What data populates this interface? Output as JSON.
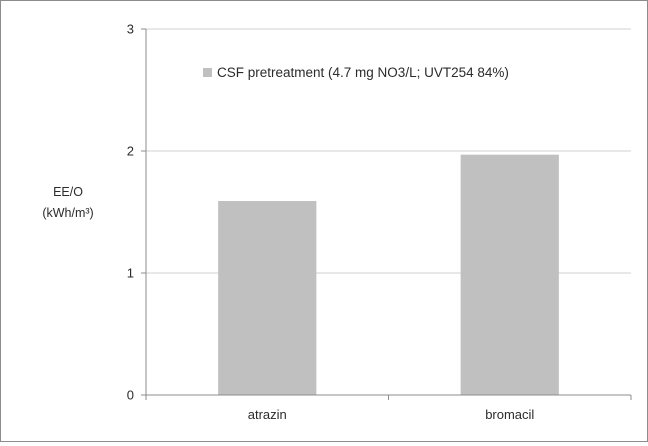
{
  "chart_data": {
    "type": "bar",
    "categories": [
      "atrazin",
      "bromacil"
    ],
    "series": [
      {
        "name": "CSF pretreatment (4.7 mg NO3/L; UVT254 84%)",
        "values": [
          1.59,
          1.97
        ],
        "color": "#c0c0c0"
      }
    ],
    "ylabel_lines": [
      "EE/O",
      "(kWh/m³)"
    ],
    "ylim": [
      0,
      3
    ],
    "yticks": [
      0,
      1,
      2,
      3
    ],
    "grid": true,
    "legend_position": "top-left-inside",
    "gridline_color": "#d0d0d0",
    "axis_color": "#8c8c8c"
  }
}
